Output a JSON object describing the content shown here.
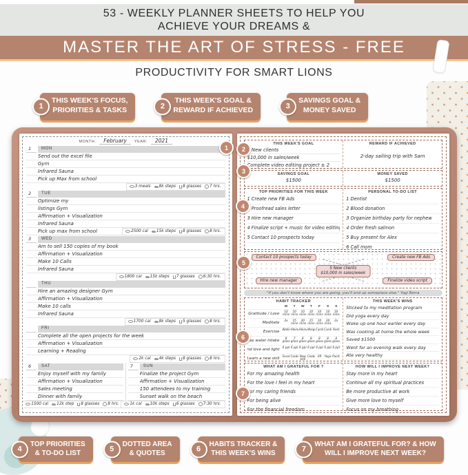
{
  "header": {
    "line1": "53 - WEEKLY PLANNER SHEETS TO HELP YOU",
    "line2": "ACHIEVE YOUR DREAMS &",
    "banner": "MASTER THE ART OF STRESS - FREE",
    "subtitle": "PRODUCTIVITY FOR SMART LIONS"
  },
  "callouts_top": [
    {
      "num": "1",
      "line1": "THIS WEEK'S FOCUS,",
      "line2": "PRIORITIES & TASKS"
    },
    {
      "num": "2",
      "line1": "THIS WEEK'S GOAL &",
      "line2": "REWARD IF ACHIEVED"
    },
    {
      "num": "3",
      "line1": "SAVINGS GOAL &",
      "line2": "MONEY SAVED"
    }
  ],
  "callouts_bottom": [
    {
      "num": "4",
      "line1": "TOP PRIORITIES",
      "line2": "& TO-DO LIST"
    },
    {
      "num": "5",
      "line1": "DOTTED AREA",
      "line2": "& QUOTES"
    },
    {
      "num": "6",
      "line1": "HABITS TRACKER &",
      "line2": "THIS WEEK'S WINS"
    },
    {
      "num": "7",
      "line1": "WHAT AM I GRATEFUL FOR? & HOW",
      "line2": "WILL I IMPROVE NEXT WEEK?"
    }
  ],
  "markers": [
    "1",
    "2",
    "3",
    "4",
    "5",
    "6",
    "7"
  ],
  "left_page": {
    "month_label": "MONTH:",
    "month_value": "February",
    "year_label": "YEAR:",
    "year_value": "2021",
    "days": [
      {
        "num": "1",
        "name": "MON",
        "stats_inline": false,
        "tasks": [
          "Send out the excel file",
          "Gym",
          "Infrared Sauna",
          "Pick up Max from school"
        ],
        "stats": {
          "meals": "3 meals",
          "steps": "8k steps",
          "water": "8 glasses",
          "sleep": "7 hrs."
        }
      },
      {
        "num": "2",
        "name": "TUE",
        "stats_inline": true,
        "tasks": [
          "Optimize my",
          "listings Gym",
          "Affirmation + Visualization",
          "Infrared Sauna",
          "Pick up max from school"
        ],
        "stats": {
          "meals": "2500 cal",
          "steps": "15k steps",
          "water": "8 glasses",
          "sleep": "8 hrs."
        }
      },
      {
        "num": "3",
        "name": "WED",
        "stats_inline": false,
        "tasks": [
          "Am to sell 150 copies of my book",
          "Affirmation + Visualization",
          "Make 10 Calls",
          "Infrared Sauna"
        ],
        "stats": {
          "meals": "1800 cal",
          "steps": "15k steps",
          "water": "7 glasses",
          "sleep": "6:30 hrs."
        }
      },
      {
        "num": "",
        "name": "THU",
        "stats_inline": false,
        "tasks": [
          "Hire an amazing designer Gym",
          "Affirmation + Visualization",
          "Make 10 calls",
          "Infrared Sauna"
        ],
        "stats": {
          "meals": "1700 cal",
          "steps": "8k steps",
          "water": "5 glasses",
          "sleep": "8 hrs."
        }
      },
      {
        "num": "",
        "name": "FRI",
        "stats_inline": false,
        "tasks": [
          "Complete all the open projects for the week",
          "Affirmation + Visualization",
          "Learning + Reading"
        ],
        "stats": {
          "meals": "2k cal",
          "steps": "4k steps",
          "water": "8 glasses",
          "sleep": "8 hrs."
        }
      }
    ],
    "weekend": [
      {
        "num": "6",
        "name": "SAT",
        "stats_inline": false,
        "tasks": [
          "Enjoy myself with my family",
          "Affirmation + Visualization",
          "Sales meeting",
          "Dinner with family"
        ],
        "stats": {
          "meals": "1500 cal",
          "steps": "12k step",
          "water": "8 glasses",
          "sleep": "8 hrs."
        }
      },
      {
        "num": "7",
        "name": "SUN",
        "stats_inline": false,
        "tasks": [
          "Finalize the project Gym",
          "Affirmation + Visualization",
          "150 attendees to my training",
          "Sunset walk on the beach"
        ],
        "stats": {
          "meals": "1k cal",
          "steps": "10k steps",
          "water": "6 glasses",
          "sleep": "7:30 hrs."
        }
      }
    ]
  },
  "right_page": {
    "goal": {
      "title": "THIS WEEK'S GOAL",
      "lines": [
        "5 New clients",
        "$10,000 in sales/week",
        "Complete video editing project ± 2"
      ]
    },
    "reward": {
      "title": "REWARD IF ACHIEVED",
      "text": "2-day sailing trip with Sam"
    },
    "savings": {
      "title": "SAVINGS GOAL",
      "value": "$1500"
    },
    "money": {
      "title": "MONEY SAVED",
      "value": "$1500"
    },
    "priorities": {
      "title": "TOP PRIORITIES FOR THIS WEEK",
      "items": [
        "1 Create new FB Ads",
        "2 Proofread sales letter",
        "3 Hire new manager",
        "4 Finalize script + music for video editing",
        "5 Contact 10 prospects today"
      ]
    },
    "todo": {
      "title": "PERSONAL TO-DO LIST",
      "items": [
        "1 Dentist",
        "2 Blood donation",
        "3 Organize birthday party for nephew",
        "4 Order fresh salmon",
        "5 Buy present for Alex",
        "6 Call mom"
      ]
    },
    "mindmap": {
      "top_left": "Contact 10 prospects today",
      "top_right": "Create new FB Ads",
      "center_line1": "5 New clients",
      "center_line2": "$10,000 in sales/week",
      "bottom_left": "Hire new manager",
      "bottom_right": "Finalize video script"
    },
    "quote": "\"If you don't know where you are going, you'll end up someplace else.\" Yogi Berra",
    "habits": {
      "title": "HABIT TRACKER",
      "day_headers": [
        "M",
        "T",
        "W",
        "T",
        "F",
        "S",
        "S"
      ],
      "rows": [
        {
          "label": "Gratitude / Love",
          "cells": [
            "10 mins",
            "10 mins",
            "10 mins",
            "10 mins",
            "10 mins",
            "10 mins",
            "10 mins"
          ]
        },
        {
          "label": "Meditate",
          "cells": [
            "2x",
            "15 mins",
            "20 mins",
            "15 mins",
            "10 mins",
            "20 mins",
            "2x"
          ]
        },
        {
          "label": "Exercise",
          "cells": [
            "Walking",
            "Hiking",
            "Hiking",
            "Weights",
            "Cardio",
            "Cardio",
            "Rest"
          ]
        },
        {
          "label": "Increase water intake",
          "cells": [
            "8 glass",
            "7 glass",
            "8 glass",
            "8 glass",
            "8 glass",
            "8 glass",
            "8 glass"
          ]
        },
        {
          "label": "Send love and light",
          "cells": [
            "6 ppl",
            "6 ppl",
            "6 ppl",
            "6 ppl",
            "6 ppl",
            "6 ppl",
            "6 ppl"
          ]
        },
        {
          "label": "Learn a new skill",
          "cells": [
            "Excel",
            "Cooking",
            "New skill",
            "Cooking",
            "VR",
            "Yoga",
            "Painting"
          ]
        }
      ]
    },
    "wins": {
      "title": "THIS WEEK'S WINS",
      "items": [
        "Sticked to my meditation program",
        "Did yoga every day",
        "Woke up one hour earlier every day",
        "Was cooking at home the whole week",
        "Saved $1500",
        "Went for an evening walk every day",
        "Ate very healthy"
      ]
    },
    "grateful": {
      "title": "WHAT AM I GRATEFUL FOR ?",
      "items": [
        "For my amazing health",
        "For the love I feel in my heart",
        "For my caring friends",
        "For being alive",
        "For the financial freedom"
      ]
    },
    "improve": {
      "title": "HOW WILL I IMPROVE NEXT WEEK?",
      "items": [
        "Stay more in my heart",
        "Continue all my spiritual practices",
        "Be more productive at work",
        "Give more love to myself",
        "Focus on my breathing"
      ]
    }
  },
  "colors": {
    "banner_brown": "#b5846e",
    "badge_underline": "#e9a35f",
    "pink_note": "#f2d7d7",
    "marker": "#c0886f"
  }
}
